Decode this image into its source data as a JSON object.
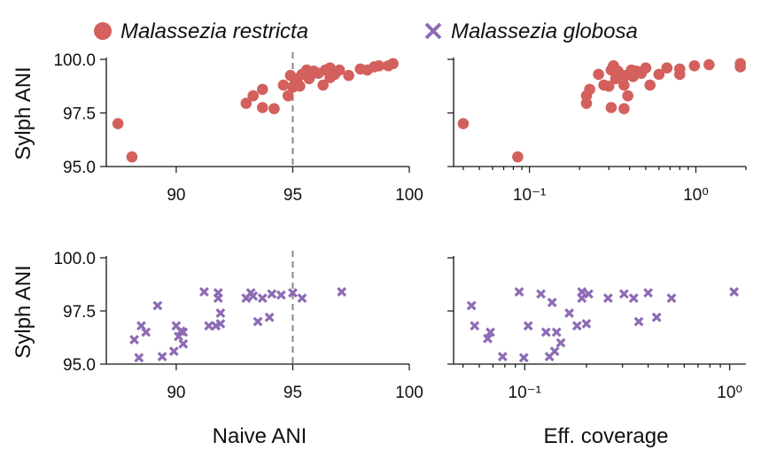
{
  "legend": [
    {
      "label": "Malassezia restricta",
      "marker": "circle",
      "color": "#d3605c"
    },
    {
      "label": "Malassezia globosa",
      "marker": "x",
      "color": "#8e6bb5"
    }
  ],
  "axis_titles": {
    "y_top": "Sylph ANI",
    "y_bottom": "Sylph ANI",
    "x_left": "Naive ANI",
    "x_right": "Eff. coverage"
  },
  "chart_data": [
    {
      "type": "scatter",
      "panel": "top-left",
      "series_name": "Malassezia restricta",
      "xlabel": "",
      "ylabel": "Sylph ANI",
      "xlim": [
        87,
        100
      ],
      "ylim": [
        95,
        100
      ],
      "xticks": [
        90,
        95,
        100
      ],
      "xtick_labels": [
        "90",
        "95",
        "100"
      ],
      "yticks": [
        95,
        97.5,
        100
      ],
      "ytick_labels": [
        "95.0",
        "97.5",
        "100.0"
      ],
      "vline": 95,
      "points": [
        [
          87.5,
          97.0
        ],
        [
          88.1,
          95.45
        ],
        [
          93.0,
          97.95
        ],
        [
          93.3,
          98.3
        ],
        [
          93.7,
          98.6
        ],
        [
          93.7,
          97.75
        ],
        [
          94.2,
          97.7
        ],
        [
          94.6,
          98.8
        ],
        [
          94.9,
          99.25
        ],
        [
          94.8,
          98.3
        ],
        [
          95.0,
          98.7
        ],
        [
          95.1,
          98.9
        ],
        [
          95.2,
          99.1
        ],
        [
          95.3,
          98.75
        ],
        [
          95.4,
          99.3
        ],
        [
          95.6,
          99.5
        ],
        [
          95.7,
          99.1
        ],
        [
          95.8,
          99.3
        ],
        [
          95.9,
          99.45
        ],
        [
          96.1,
          99.35
        ],
        [
          96.3,
          98.8
        ],
        [
          96.4,
          99.5
        ],
        [
          96.6,
          99.6
        ],
        [
          96.8,
          99.3
        ],
        [
          97.0,
          99.5
        ],
        [
          97.4,
          99.25
        ],
        [
          97.9,
          99.55
        ],
        [
          98.2,
          99.5
        ],
        [
          98.5,
          99.65
        ],
        [
          98.7,
          99.7
        ],
        [
          99.1,
          99.7
        ],
        [
          99.3,
          99.8
        ],
        [
          96.6,
          99.15
        ]
      ]
    },
    {
      "type": "scatter",
      "panel": "top-right",
      "series_name": "Malassezia restricta",
      "xlabel": "",
      "ylabel": "",
      "xscale": "log",
      "xlim": [
        0.035,
        2.0
      ],
      "ylim": [
        95,
        100
      ],
      "xticks": [
        0.1,
        1
      ],
      "xtick_labels": [
        "10⁻¹",
        "10⁰"
      ],
      "yticks": [
        95,
        97.5,
        100
      ],
      "ytick_labels": [
        "",
        "",
        ""
      ],
      "points": [
        [
          0.04,
          97.0
        ],
        [
          0.085,
          95.45
        ],
        [
          0.22,
          98.3
        ],
        [
          0.22,
          97.95
        ],
        [
          0.23,
          98.6
        ],
        [
          0.26,
          99.3
        ],
        [
          0.28,
          98.8
        ],
        [
          0.3,
          98.75
        ],
        [
          0.31,
          99.5
        ],
        [
          0.31,
          97.75
        ],
        [
          0.32,
          99.7
        ],
        [
          0.33,
          99.1
        ],
        [
          0.34,
          99.45
        ],
        [
          0.35,
          99.3
        ],
        [
          0.37,
          98.8
        ],
        [
          0.37,
          97.7
        ],
        [
          0.38,
          99.25
        ],
        [
          0.39,
          98.3
        ],
        [
          0.41,
          99.5
        ],
        [
          0.42,
          99.2
        ],
        [
          0.44,
          99.45
        ],
        [
          0.47,
          99.35
        ],
        [
          0.5,
          99.6
        ],
        [
          0.53,
          98.8
        ],
        [
          0.6,
          99.3
        ],
        [
          0.67,
          99.6
        ],
        [
          0.8,
          99.55
        ],
        [
          0.8,
          99.3
        ],
        [
          0.98,
          99.7
        ],
        [
          1.2,
          99.75
        ],
        [
          1.85,
          99.8
        ],
        [
          1.85,
          99.65
        ]
      ]
    },
    {
      "type": "scatter",
      "panel": "bottom-left",
      "series_name": "Malassezia globosa",
      "xlabel": "Naive ANI",
      "ylabel": "Sylph ANI",
      "xlim": [
        87,
        100
      ],
      "ylim": [
        95,
        100
      ],
      "xticks": [
        90,
        95,
        100
      ],
      "xtick_labels": [
        "90",
        "95",
        "100"
      ],
      "yticks": [
        95,
        97.5,
        100
      ],
      "ytick_labels": [
        "95.0",
        "97.5",
        "100.0"
      ],
      "vline": 95,
      "points": [
        [
          88.2,
          96.15
        ],
        [
          88.4,
          95.3
        ],
        [
          88.5,
          96.8
        ],
        [
          88.7,
          96.5
        ],
        [
          89.2,
          97.75
        ],
        [
          89.4,
          95.35
        ],
        [
          89.9,
          95.6
        ],
        [
          90.0,
          96.8
        ],
        [
          90.1,
          96.3
        ],
        [
          90.2,
          96.55
        ],
        [
          90.3,
          95.95
        ],
        [
          90.3,
          96.5
        ],
        [
          91.2,
          98.4
        ],
        [
          91.4,
          96.8
        ],
        [
          91.8,
          98.1
        ],
        [
          91.8,
          98.35
        ],
        [
          91.7,
          96.8
        ],
        [
          91.9,
          97.4
        ],
        [
          91.9,
          96.9
        ],
        [
          93.0,
          98.1
        ],
        [
          93.2,
          98.35
        ],
        [
          93.3,
          98.2
        ],
        [
          93.5,
          97.0
        ],
        [
          93.7,
          98.1
        ],
        [
          94.0,
          97.2
        ],
        [
          94.1,
          98.3
        ],
        [
          94.5,
          98.25
        ],
        [
          95.0,
          98.35
        ],
        [
          95.4,
          98.1
        ],
        [
          97.1,
          98.4
        ]
      ]
    },
    {
      "type": "scatter",
      "panel": "bottom-right",
      "series_name": "Malassezia globosa",
      "xlabel": "Eff. coverage",
      "ylabel": "",
      "xscale": "log",
      "xlim": [
        0.045,
        1.2
      ],
      "ylim": [
        95,
        100
      ],
      "xticks": [
        0.1,
        1
      ],
      "xtick_labels": [
        "10⁻¹",
        "10⁰"
      ],
      "yticks": [
        95,
        97.5,
        100
      ],
      "ytick_labels": [
        "",
        "",
        ""
      ],
      "points": [
        [
          0.055,
          97.75
        ],
        [
          0.057,
          96.8
        ],
        [
          0.066,
          96.2
        ],
        [
          0.068,
          96.5
        ],
        [
          0.078,
          95.35
        ],
        [
          0.094,
          98.4
        ],
        [
          0.099,
          95.3
        ],
        [
          0.104,
          96.8
        ],
        [
          0.12,
          98.3
        ],
        [
          0.127,
          96.5
        ],
        [
          0.136,
          97.9
        ],
        [
          0.132,
          95.35
        ],
        [
          0.14,
          95.6
        ],
        [
          0.143,
          96.5
        ],
        [
          0.15,
          96.0
        ],
        [
          0.165,
          97.4
        ],
        [
          0.18,
          96.8
        ],
        [
          0.19,
          98.4
        ],
        [
          0.19,
          98.1
        ],
        [
          0.2,
          96.9
        ],
        [
          0.205,
          98.3
        ],
        [
          0.255,
          98.1
        ],
        [
          0.305,
          98.3
        ],
        [
          0.34,
          98.1
        ],
        [
          0.36,
          97.0
        ],
        [
          0.4,
          98.35
        ],
        [
          0.44,
          97.2
        ],
        [
          0.52,
          98.1
        ],
        [
          1.05,
          98.4
        ]
      ]
    }
  ]
}
